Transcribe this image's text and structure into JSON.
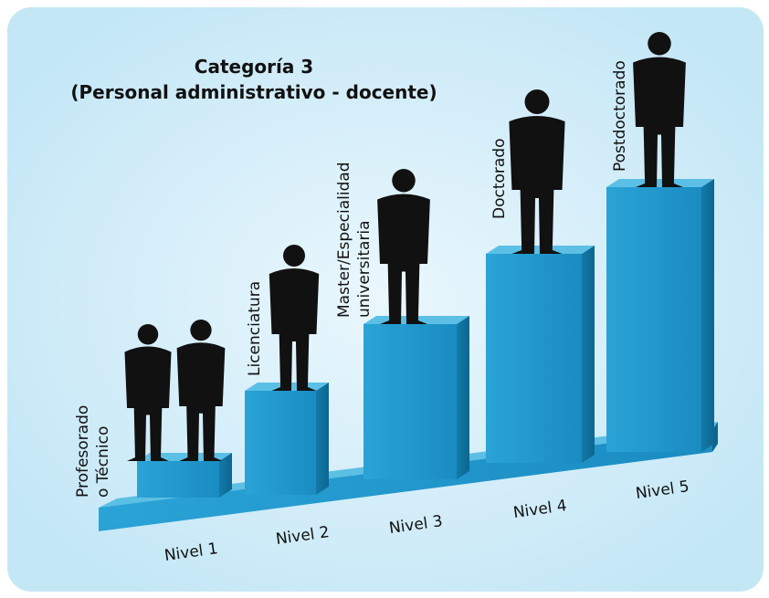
{
  "title": {
    "line1": "Categoría 3",
    "line2": "(Personal administrativo - docente)"
  },
  "levels": [
    {
      "nivel": "Nivel 1",
      "degree": [
        "Profesorado",
        "o Técnico"
      ]
    },
    {
      "nivel": "Nivel 2",
      "degree": [
        "Licenciatura"
      ]
    },
    {
      "nivel": "Nivel 3",
      "degree": [
        "Master/Especialidad",
        "universitaria"
      ]
    },
    {
      "nivel": "Nivel 4",
      "degree": [
        "Doctorado"
      ]
    },
    {
      "nivel": "Nivel 5",
      "degree": [
        "Postdoctorado"
      ]
    }
  ]
}
